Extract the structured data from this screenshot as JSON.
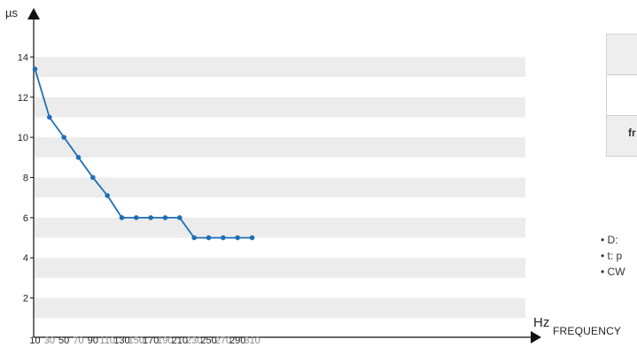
{
  "chart_data": {
    "type": "line",
    "ylabel": "µs",
    "xlabel": "Hz",
    "xcaption": "FREQUENCY",
    "x": [
      10,
      30,
      50,
      70,
      90,
      110,
      130,
      150,
      170,
      190,
      210,
      230,
      250,
      270,
      290,
      310
    ],
    "series": [
      {
        "values": [
          13.4,
          11,
          10,
          9,
          8,
          7.1,
          6,
          6,
          6,
          6,
          6,
          5,
          5,
          5,
          5,
          5
        ]
      }
    ],
    "yticks": [
      2,
      4,
      6,
      8,
      10,
      12,
      14
    ],
    "ylim": [
      0,
      15
    ],
    "xlim": [
      0,
      320
    ],
    "grid": "horizontal bands",
    "colors": {
      "line": "#1f6fb5",
      "band": "#ececec",
      "axis": "#111111",
      "tick_label_major": "#222222",
      "tick_label_minor": "#8a8a8a"
    }
  },
  "side_table": {
    "rows": [
      "",
      "",
      "fr"
    ]
  },
  "notes": [
    "• D:",
    "• t: p",
    "• CW"
  ]
}
